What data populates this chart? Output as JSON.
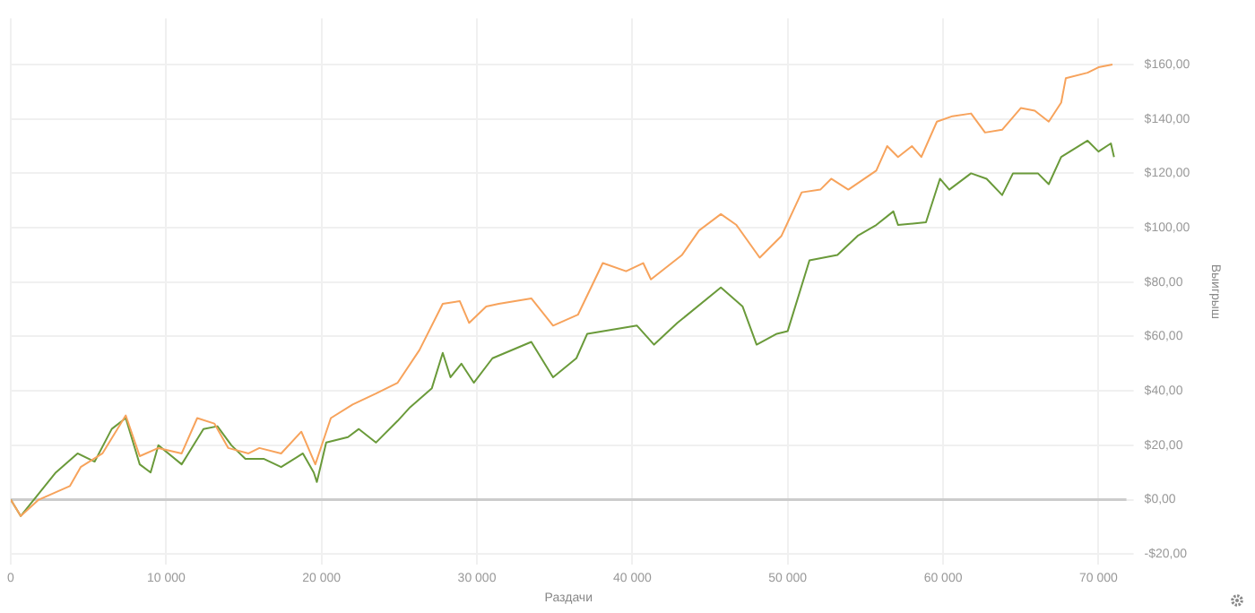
{
  "chart_data": {
    "type": "line",
    "xlabel": "Раздачи",
    "ylabel": "Выигрыш",
    "xlim": [
      0,
      71800
    ],
    "ylim": [
      -24,
      177
    ],
    "xticks": [
      0,
      {
        "value": 10000,
        "label": "10 000"
      },
      {
        "value": 20000,
        "label": "20 000"
      },
      {
        "value": 30000,
        "label": "30 000"
      },
      {
        "value": 40000,
        "label": "40 000"
      },
      {
        "value": 50000,
        "label": "50 000"
      },
      {
        "value": 60000,
        "label": "60 000"
      },
      {
        "value": 70000,
        "label": "70 000"
      }
    ],
    "yticks": [
      {
        "value": -20,
        "label": "-$20,00"
      },
      {
        "value": 0,
        "label": "$0,00"
      },
      {
        "value": 20,
        "label": "$20,00"
      },
      {
        "value": 40,
        "label": "$40,00"
      },
      {
        "value": 60,
        "label": "$60,00"
      },
      {
        "value": 80,
        "label": "$80,00"
      },
      {
        "value": 100,
        "label": "$100,00"
      },
      {
        "value": 120,
        "label": "$120,00"
      },
      {
        "value": 140,
        "label": "$140,00"
      },
      {
        "value": 160,
        "label": "$160,00"
      }
    ],
    "grid": true,
    "legend": false,
    "marker": "none",
    "line_style": "solid",
    "ref_lines": [
      {
        "axis": "y",
        "value": 0,
        "color": "#cccccc"
      }
    ],
    "series": [
      {
        "color": "#f7a35c",
        "x": [
          0,
          640,
          1800,
          3800,
          4500,
          5900,
          7400,
          8300,
          9500,
          11000,
          12000,
          13100,
          14000,
          15300,
          16000,
          17400,
          18700,
          19600,
          20600,
          22000,
          23500,
          24900,
          26300,
          27800,
          28900,
          29500,
          30600,
          31400,
          33500,
          34900,
          36500,
          38100,
          39600,
          40700,
          41200,
          43200,
          44300,
          45700,
          46700,
          48200,
          49600,
          50900,
          52100,
          52800,
          53900,
          55700,
          56400,
          57100,
          58000,
          58600,
          59600,
          60600,
          61800,
          62700,
          63800,
          65000,
          65900,
          66800,
          67600,
          67900,
          69300,
          70000,
          70900
        ],
        "values": [
          0,
          -6,
          0,
          5,
          12,
          17,
          31,
          16,
          19,
          17,
          30,
          28,
          19,
          17,
          19,
          17,
          25,
          13,
          30,
          35,
          39,
          43,
          55,
          72,
          73,
          65,
          71,
          72,
          74,
          64,
          68,
          87,
          84,
          87,
          81,
          90,
          99,
          105,
          101,
          89,
          97,
          113,
          114,
          118,
          114,
          121,
          130,
          126,
          130,
          126,
          139,
          141,
          142,
          135,
          136,
          144,
          143,
          139,
          146,
          155,
          157,
          159,
          160
        ]
      },
      {
        "color": "#6a9a3a",
        "x": [
          0,
          640,
          2900,
          4300,
          5400,
          6500,
          7400,
          8300,
          9000,
          9500,
          11000,
          12400,
          13300,
          14200,
          15100,
          16300,
          17400,
          18800,
          19500,
          19700,
          20300,
          21700,
          22400,
          23500,
          24900,
          25700,
          27100,
          27800,
          28300,
          29000,
          29800,
          31000,
          33500,
          34900,
          36400,
          37100,
          40300,
          41400,
          42900,
          45700,
          47100,
          48000,
          49300,
          50000,
          51400,
          53200,
          54500,
          55700,
          56800,
          57100,
          58900,
          59800,
          60400,
          61800,
          62800,
          63800,
          64500,
          66100,
          66800,
          67600,
          69300,
          70000,
          70800,
          71000
        ],
        "values": [
          0,
          -6,
          10,
          17,
          14,
          26,
          30,
          13,
          10,
          20,
          13,
          26,
          27,
          20,
          15,
          15,
          12,
          17,
          10,
          6.5,
          21,
          23,
          26,
          21,
          29,
          34,
          41,
          54,
          45,
          50,
          43,
          52,
          58,
          45,
          52,
          61,
          64,
          57,
          65,
          78,
          71,
          57,
          61,
          62,
          88,
          90,
          97,
          101,
          106,
          101,
          102,
          118,
          114,
          120,
          118,
          112,
          120,
          120,
          116,
          126,
          132,
          128,
          131,
          126
        ]
      }
    ]
  }
}
